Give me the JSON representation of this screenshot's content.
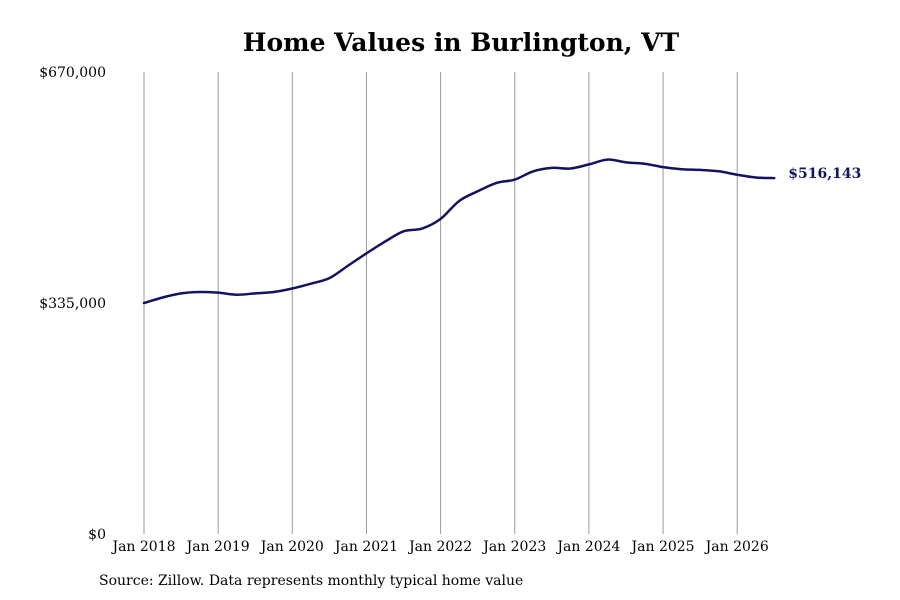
{
  "chart_data": {
    "type": "line",
    "title": "Home Values in Burlington, VT",
    "xlabel": "",
    "ylabel": "",
    "ylim": [
      0,
      670000
    ],
    "yticks": [
      {
        "value": 0,
        "label": "$0"
      },
      {
        "value": 335000,
        "label": "$335,000"
      },
      {
        "value": 670000,
        "label": "$670,000"
      }
    ],
    "xticks": [
      {
        "value": 2018.0,
        "label": "Jan 2018"
      },
      {
        "value": 2019.0,
        "label": "Jan 2019"
      },
      {
        "value": 2020.0,
        "label": "Jan 2020"
      },
      {
        "value": 2021.0,
        "label": "Jan 2021"
      },
      {
        "value": 2022.0,
        "label": "Jan 2022"
      },
      {
        "value": 2023.0,
        "label": "Jan 2023"
      },
      {
        "value": 2024.0,
        "label": "Jan 2024"
      },
      {
        "value": 2025.0,
        "label": "Jan 2025"
      },
      {
        "value": 2026.0,
        "label": "Jan 2026"
      }
    ],
    "xlim": [
      2018.0,
      2026.55
    ],
    "grid": "vertical",
    "line_color": "#14145e",
    "series": [
      {
        "name": "",
        "x": [
          2018.0,
          2018.25,
          2018.5,
          2018.75,
          2019.0,
          2019.25,
          2019.5,
          2019.75,
          2020.0,
          2020.25,
          2020.5,
          2020.75,
          2021.0,
          2021.25,
          2021.5,
          2021.75,
          2022.0,
          2022.25,
          2022.5,
          2022.75,
          2023.0,
          2023.25,
          2023.5,
          2023.75,
          2024.0,
          2024.25,
          2024.5,
          2024.75,
          2025.0,
          2025.25,
          2025.5,
          2025.75,
          2026.0,
          2026.25,
          2026.5
        ],
        "y": [
          335000,
          343000,
          349000,
          351000,
          350000,
          347000,
          349000,
          351000,
          356000,
          363000,
          371000,
          389000,
          407000,
          424000,
          439000,
          443000,
          457000,
          483000,
          497000,
          509000,
          514000,
          526000,
          531000,
          530000,
          536000,
          543000,
          539000,
          537000,
          532000,
          529000,
          528000,
          526000,
          521000,
          517000,
          516143
        ]
      }
    ],
    "end_label": "$516,143",
    "end_label_color": "#14145e"
  },
  "footer": {
    "source": "Source: Zillow. Data represents monthly typical home value"
  }
}
